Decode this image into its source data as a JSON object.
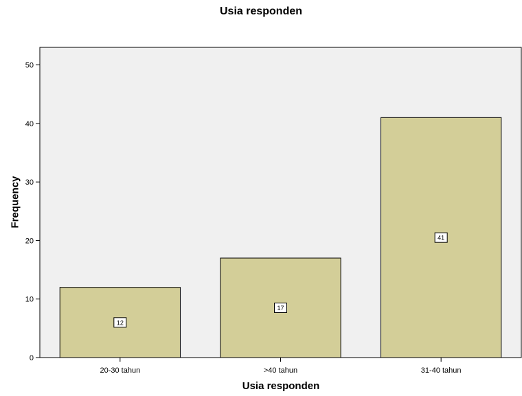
{
  "chart_data": {
    "type": "bar",
    "title": "Usia responden",
    "xlabel": "Usia responden",
    "ylabel": "Frequency",
    "categories": [
      "20-30 tahun",
      ">40 tahun",
      "31-40 tahun"
    ],
    "values": [
      12,
      17,
      41
    ],
    "data_labels": [
      "12",
      "17",
      "41"
    ],
    "yticks": [
      "0",
      "10",
      "20",
      "30",
      "40",
      "50"
    ],
    "ylim": [
      0,
      53
    ],
    "grid": false,
    "colors": {
      "bar": "#d3ce98",
      "plot_bg": "#f0f0f0",
      "border": "#000000"
    }
  }
}
